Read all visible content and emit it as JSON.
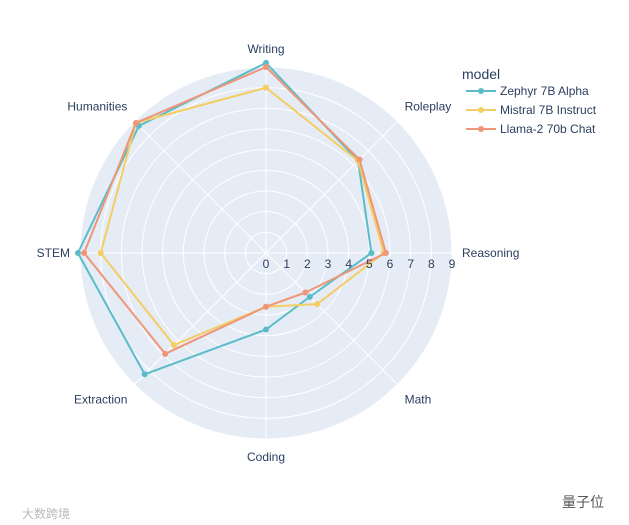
{
  "chart_data": {
    "type": "radar",
    "categories": [
      "Writing",
      "Roleplay",
      "Reasoning",
      "Math",
      "Coding",
      "Extraction",
      "STEM",
      "Humanities"
    ],
    "radial_ticks": [
      0,
      1,
      2,
      3,
      4,
      5,
      6,
      7,
      8,
      9
    ],
    "rlim": [
      0,
      9
    ],
    "legend_title": "model",
    "legend_position": "top-right",
    "grid": true,
    "series": [
      {
        "name": "Zephyr 7B Alpha",
        "color": "#5bbcc9",
        "values": [
          9.2,
          6.3,
          5.1,
          3.0,
          3.7,
          8.3,
          9.1,
          8.7
        ]
      },
      {
        "name": "Mistral 7B Instruct",
        "color": "#f4cd63",
        "values": [
          8.0,
          6.3,
          5.7,
          3.5,
          2.6,
          6.3,
          8.0,
          8.9
        ]
      },
      {
        "name": "Llama-2 70b Chat",
        "color": "#ee9677",
        "values": [
          9.0,
          6.4,
          5.8,
          2.7,
          2.6,
          6.9,
          8.8,
          8.9
        ]
      }
    ]
  },
  "watermarks": {
    "left": "大数跨境",
    "right": "量子位"
  }
}
